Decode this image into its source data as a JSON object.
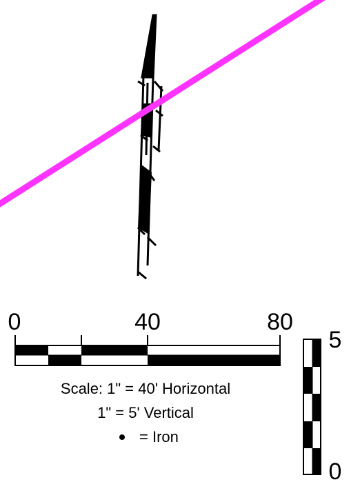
{
  "scale_bar": {
    "tick_labels": [
      "0",
      "40",
      "80"
    ]
  },
  "vertical_scale": {
    "top_label": "5",
    "bottom_label": "0"
  },
  "legend": {
    "line1": "Scale: 1\" = 40' Horizontal",
    "line2": "1\" = 5' Vertical",
    "line3": "=  Iron",
    "marker": "bullet"
  },
  "colors": {
    "cross_line": "#ff33ff",
    "ink": "#000000",
    "background": "#ffffff"
  }
}
